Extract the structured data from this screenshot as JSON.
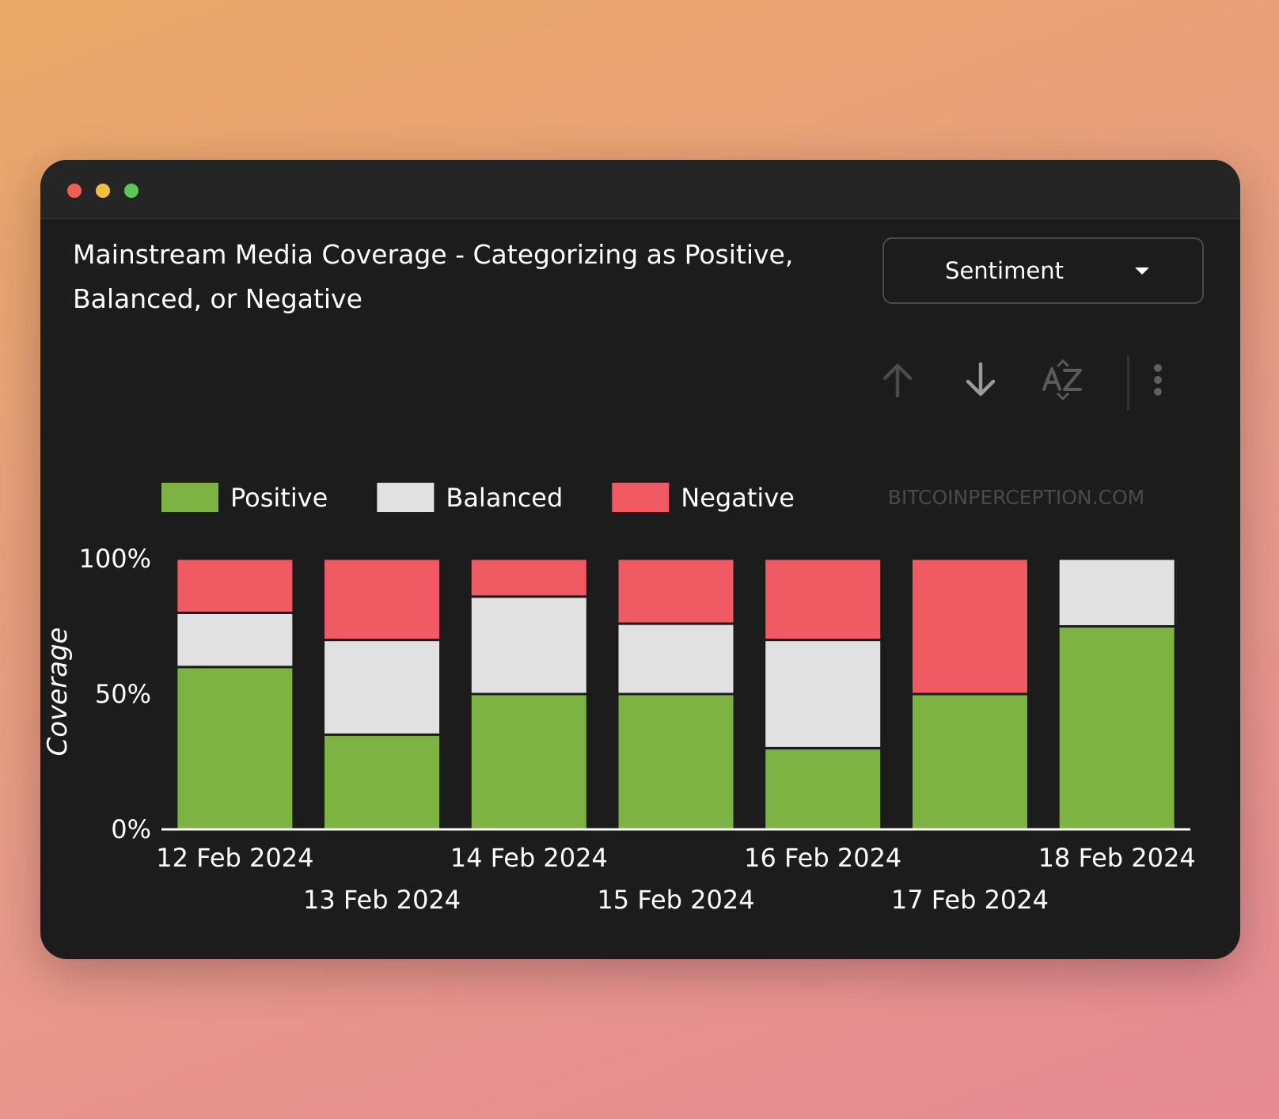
{
  "window": {
    "title": "Mainstream Media Coverage - Categorizing as Positive, Balanced, or Negative"
  },
  "controls": {
    "dropdown": {
      "selected": "Sentiment"
    },
    "icons": [
      "arrow-up-icon",
      "arrow-down-icon",
      "sort-az-icon",
      "more-vertical-icon"
    ]
  },
  "watermark": "BITCOINPERCEPTION.COM",
  "colors": {
    "positive": "#7cb342",
    "balanced": "#e1e1e1",
    "negative": "#ef5a63",
    "background": "#1c1c1c"
  },
  "chart_data": {
    "type": "bar",
    "stacked": true,
    "categories": [
      "12 Feb 2024",
      "13 Feb 2024",
      "14 Feb 2024",
      "15 Feb 2024",
      "16 Feb 2024",
      "17 Feb 2024",
      "18 Feb 2024"
    ],
    "series": [
      {
        "name": "Positive",
        "color": "#7cb342",
        "values": [
          60,
          35,
          50,
          50,
          30,
          50,
          75
        ]
      },
      {
        "name": "Balanced",
        "color": "#e1e1e1",
        "values": [
          20,
          35,
          36,
          26,
          40,
          0,
          25
        ]
      },
      {
        "name": "Negative",
        "color": "#ef5a63",
        "values": [
          20,
          30,
          14,
          24,
          30,
          50,
          0
        ]
      }
    ],
    "ylabel": "Coverage",
    "xlabel": "",
    "ylim": [
      0,
      100
    ],
    "yticks": [
      "0%",
      "50%",
      "100%"
    ],
    "legend": "top-left"
  }
}
